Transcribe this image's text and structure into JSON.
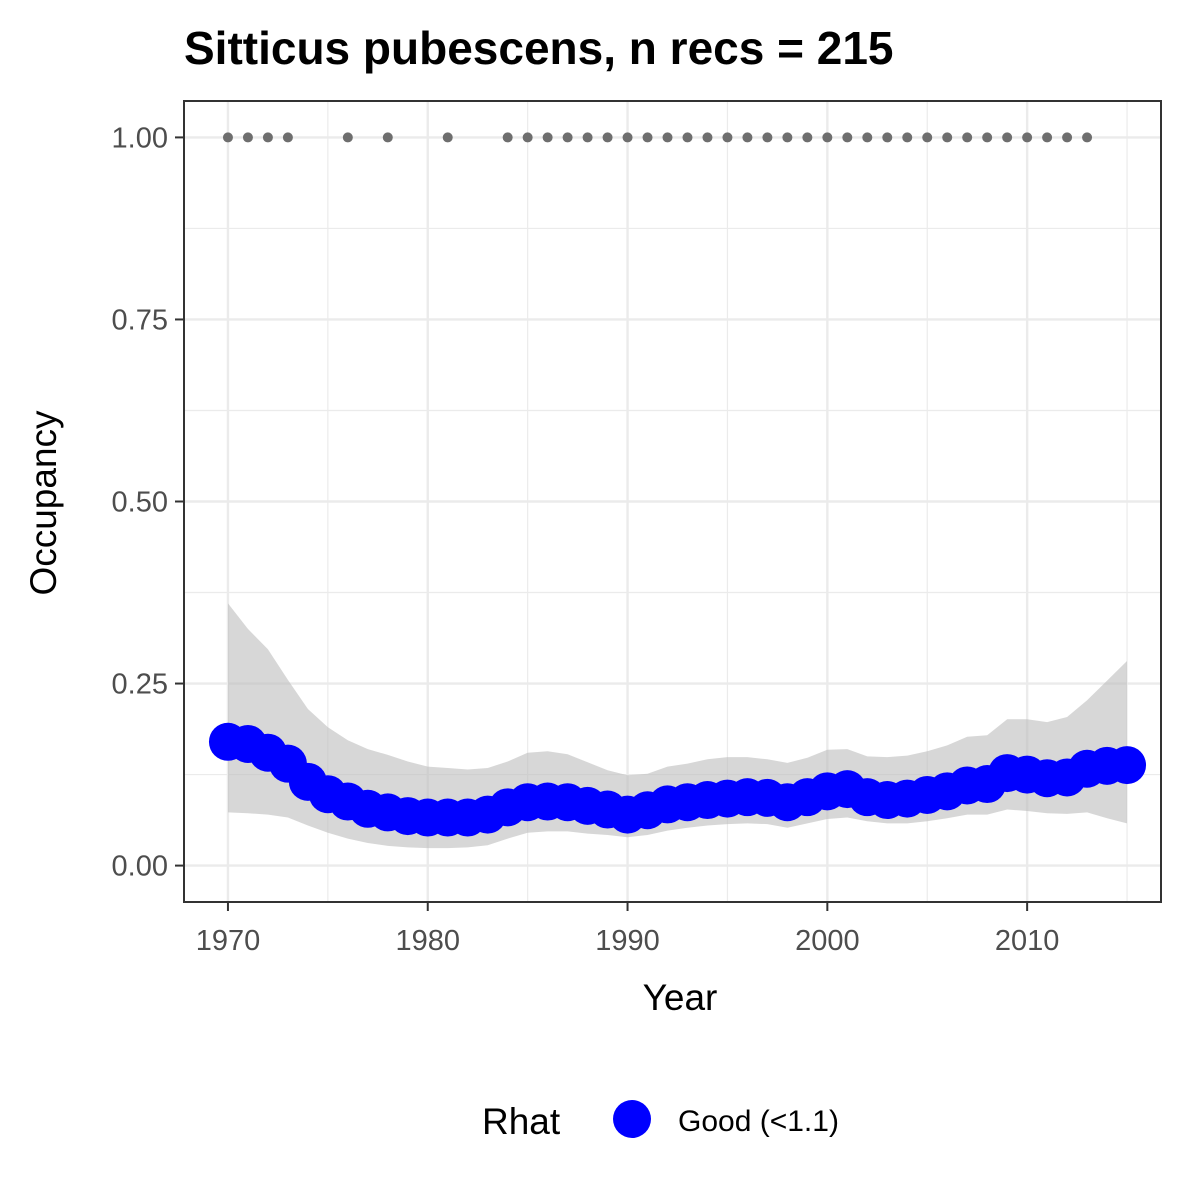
{
  "chart_data": {
    "type": "line",
    "title": "Sitticus pubescens, n recs = 215",
    "xlabel": "Year",
    "ylabel": "Occupancy",
    "xlim": [
      1967.8,
      2016.7
    ],
    "ylim": [
      -0.05,
      1.05
    ],
    "x_ticks": [
      1970,
      1980,
      1990,
      2000,
      2010
    ],
    "x_tick_labels": [
      "1970",
      "1980",
      "1990",
      "2000",
      "2010"
    ],
    "y_ticks": [
      0,
      0.25,
      0.5,
      0.75,
      1
    ],
    "y_tick_labels": [
      "0.00",
      "0.25",
      "0.50",
      "0.75",
      "1.00"
    ],
    "grid": true,
    "series": [
      {
        "name": "Good (<1.1)",
        "color": "#0000ff",
        "x": [
          1970,
          1971,
          1972,
          1973,
          1974,
          1975,
          1976,
          1977,
          1978,
          1979,
          1980,
          1981,
          1982,
          1983,
          1984,
          1985,
          1986,
          1987,
          1988,
          1989,
          1990,
          1991,
          1992,
          1993,
          1994,
          1995,
          1996,
          1997,
          1998,
          1999,
          2000,
          2001,
          2002,
          2003,
          2004,
          2005,
          2006,
          2007,
          2008,
          2009,
          2010,
          2011,
          2012,
          2013,
          2014,
          2015
        ],
        "values": [
          0.17,
          0.167,
          0.155,
          0.14,
          0.115,
          0.098,
          0.088,
          0.078,
          0.073,
          0.068,
          0.066,
          0.066,
          0.066,
          0.07,
          0.08,
          0.087,
          0.088,
          0.087,
          0.082,
          0.077,
          0.07,
          0.076,
          0.084,
          0.087,
          0.09,
          0.092,
          0.094,
          0.093,
          0.087,
          0.094,
          0.102,
          0.105,
          0.094,
          0.09,
          0.092,
          0.097,
          0.102,
          0.11,
          0.112,
          0.127,
          0.125,
          0.12,
          0.121,
          0.133,
          0.137,
          0.138
        ],
        "lower": [
          0.073,
          0.072,
          0.07,
          0.066,
          0.055,
          0.045,
          0.037,
          0.031,
          0.027,
          0.025,
          0.024,
          0.024,
          0.025,
          0.028,
          0.037,
          0.045,
          0.047,
          0.047,
          0.044,
          0.042,
          0.039,
          0.042,
          0.048,
          0.052,
          0.055,
          0.057,
          0.058,
          0.057,
          0.052,
          0.058,
          0.064,
          0.066,
          0.061,
          0.058,
          0.058,
          0.061,
          0.065,
          0.07,
          0.07,
          0.077,
          0.075,
          0.072,
          0.071,
          0.073,
          0.065,
          0.058
        ],
        "upper": [
          0.36,
          0.325,
          0.297,
          0.255,
          0.215,
          0.19,
          0.172,
          0.16,
          0.152,
          0.143,
          0.136,
          0.134,
          0.132,
          0.134,
          0.143,
          0.155,
          0.157,
          0.153,
          0.142,
          0.131,
          0.124,
          0.126,
          0.136,
          0.14,
          0.146,
          0.149,
          0.149,
          0.146,
          0.141,
          0.148,
          0.159,
          0.16,
          0.15,
          0.149,
          0.151,
          0.157,
          0.165,
          0.177,
          0.179,
          0.201,
          0.201,
          0.197,
          0.204,
          0.227,
          0.254,
          0.281
        ]
      }
    ],
    "records": {
      "color": "#6e6e6e",
      "y": 1,
      "x": [
        1970,
        1971,
        1972,
        1973,
        1976,
        1978,
        1981,
        1984,
        1985,
        1986,
        1987,
        1988,
        1989,
        1990,
        1991,
        1992,
        1993,
        1994,
        1995,
        1996,
        1997,
        1998,
        1999,
        2000,
        2001,
        2002,
        2003,
        2004,
        2005,
        2006,
        2007,
        2008,
        2009,
        2010,
        2011,
        2012,
        2013
      ]
    },
    "legend": {
      "title": "Rhat",
      "label": "Good (<1.1)",
      "position": "bottom"
    }
  }
}
